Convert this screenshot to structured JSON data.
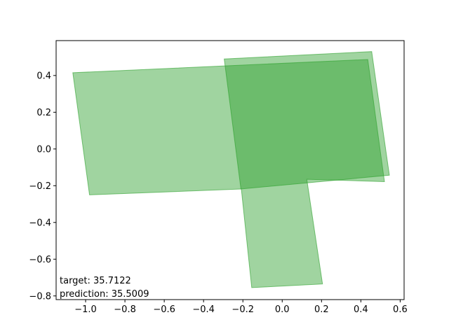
{
  "chart_data": {
    "type": "polygon",
    "title": "",
    "xlabel": "",
    "ylabel": "",
    "xlim": [
      -1.15,
      0.62
    ],
    "ylim": [
      -0.82,
      0.59
    ],
    "grid": false,
    "xticks": [
      -1.0,
      -0.8,
      -0.6,
      -0.4,
      -0.2,
      0.0,
      0.2,
      0.4,
      0.6
    ],
    "yticks": [
      -0.8,
      -0.6,
      -0.4,
      -0.2,
      0.0,
      0.2,
      0.4
    ],
    "xtick_labels": [
      "−1.0",
      "−0.8",
      "−0.6",
      "−0.4",
      "−0.2",
      "0.0",
      "0.2",
      "0.4",
      "0.6"
    ],
    "ytick_labels": [
      "−0.8",
      "−0.6",
      "−0.4",
      "−0.2",
      "0.0",
      "0.2",
      "0.4"
    ],
    "fill_color": "#2ca02c",
    "fill_opacity": 0.45,
    "polygons": [
      {
        "points": [
          [
            -1.065,
            0.415
          ],
          [
            0.435,
            0.487
          ],
          [
            0.52,
            -0.178
          ],
          [
            0.125,
            -0.165
          ],
          [
            0.205,
            -0.735
          ],
          [
            -0.155,
            -0.755
          ],
          [
            -0.208,
            -0.218
          ],
          [
            -0.98,
            -0.25
          ]
        ]
      },
      {
        "points": [
          [
            -0.295,
            0.49
          ],
          [
            0.455,
            0.53
          ],
          [
            0.545,
            -0.143
          ],
          [
            -0.21,
            -0.218
          ]
        ]
      }
    ],
    "annotations": [
      {
        "text": "target: 35.7122"
      },
      {
        "text": "prediction: 35.5009"
      }
    ]
  }
}
